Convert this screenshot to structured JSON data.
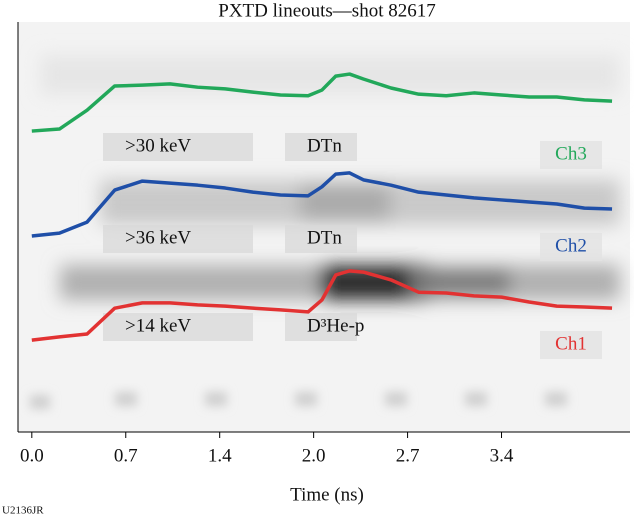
{
  "chart_data": {
    "type": "line",
    "title": "PXTD lineouts—shot 82617",
    "x_label": "Time (ns)",
    "footnote": "U2136JR",
    "x": [
      0,
      0.2,
      0.4,
      0.6,
      0.8,
      1.0,
      1.2,
      1.4,
      1.6,
      1.8,
      2.0,
      2.1,
      2.2,
      2.3,
      2.4,
      2.6,
      2.8,
      3.0,
      3.2,
      3.4,
      3.6,
      3.8,
      4.0,
      4.2
    ],
    "series": [
      {
        "name": "Ch3",
        "color": "#22a85a",
        "values": [
          73.4,
          73.9,
          78.5,
          84.4,
          84.6,
          84.9,
          84.1,
          83.7,
          82.9,
          82.2,
          82.0,
          83.4,
          86.8,
          87.3,
          86.1,
          83.9,
          82.4,
          82.0,
          82.7,
          82.2,
          81.7,
          81.7,
          81.0,
          80.7
        ]
      },
      {
        "name": "Ch2",
        "color": "#1f4fa8",
        "values": [
          47.8,
          48.5,
          51.2,
          59.0,
          61.2,
          60.7,
          60.2,
          59.5,
          58.5,
          57.8,
          57.6,
          59.8,
          62.9,
          63.2,
          61.5,
          60.2,
          58.5,
          57.8,
          57.1,
          56.6,
          56.1,
          55.6,
          54.6,
          54.4
        ]
      },
      {
        "name": "Ch1",
        "color": "#e23232",
        "values": [
          22.4,
          23.2,
          23.9,
          30.2,
          31.5,
          31.5,
          31.0,
          30.7,
          30.2,
          29.8,
          29.3,
          32.2,
          38.3,
          39.3,
          39.0,
          37.1,
          34.1,
          33.9,
          33.2,
          32.9,
          31.7,
          30.7,
          30.5,
          30.2
        ]
      }
    ],
    "annotations": [
      ">30 keV",
      "DTn",
      ">36 keV",
      "DTn",
      ">14 keV",
      "D³He-p"
    ],
    "xlim": [
      -0.1,
      4.33
    ],
    "ylim": [
      0,
      100
    ],
    "xticks": [
      {
        "value": 0,
        "label": "0.0"
      },
      {
        "value": 0.68,
        "label": "0.7"
      },
      {
        "value": 1.36,
        "label": "1.4"
      },
      {
        "value": 2.04,
        "label": "2.0"
      },
      {
        "value": 2.72,
        "label": "2.7"
      },
      {
        "value": 3.4,
        "label": "3.4"
      }
    ]
  }
}
